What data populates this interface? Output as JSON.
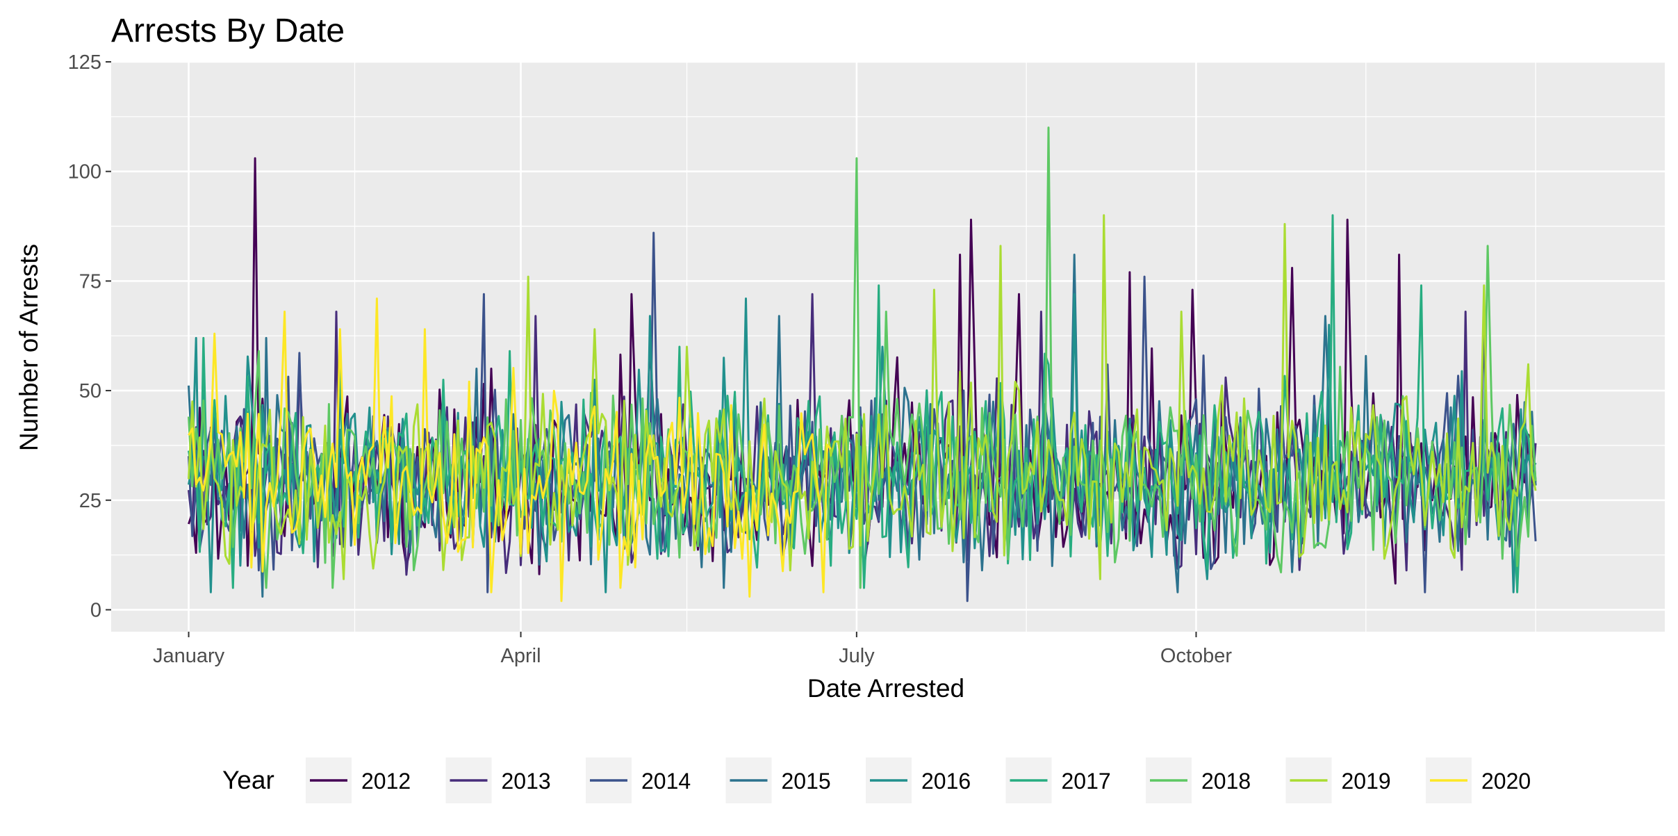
{
  "chart_data": {
    "type": "line",
    "title": "Arrests By Date",
    "xlabel": "Date Arrested",
    "ylabel": "Number of Arrests",
    "ylim": [
      -5,
      125
    ],
    "yticks": [
      0,
      25,
      50,
      75,
      100,
      125
    ],
    "xlim_day_of_year": [
      -20,
      401
    ],
    "xticks": [
      {
        "label": "January",
        "day": 1
      },
      {
        "label": "April",
        "day": 91
      },
      {
        "label": "July",
        "day": 182
      },
      {
        "label": "October",
        "day": 274
      }
    ],
    "x_minor_gridlines_day": [
      46,
      136,
      228,
      320,
      366
    ],
    "grid": true,
    "legend": {
      "title": "Year",
      "position": "bottom"
    },
    "series": [
      {
        "name": "2012",
        "color": "#440154",
        "peaks": [
          {
            "day": 19,
            "value": 103
          },
          {
            "day": 83,
            "value": 55
          },
          {
            "day": 121,
            "value": 72
          },
          {
            "day": 210,
            "value": 81
          },
          {
            "day": 213,
            "value": 89
          },
          {
            "day": 226,
            "value": 72
          },
          {
            "day": 256,
            "value": 77
          },
          {
            "day": 273,
            "value": 73
          },
          {
            "day": 300,
            "value": 78
          },
          {
            "day": 315,
            "value": 89
          },
          {
            "day": 329,
            "value": 81
          },
          {
            "day": 361,
            "value": 49
          }
        ],
        "lows": [
          {
            "day": 3,
            "value": 13
          },
          {
            "day": 60,
            "value": 10
          },
          {
            "day": 170,
            "value": 10
          },
          {
            "day": 280,
            "value": 12
          },
          {
            "day": 328,
            "value": 6
          }
        ]
      },
      {
        "name": "2013",
        "color": "#472d7b",
        "peaks": [
          {
            "day": 41,
            "value": 68
          },
          {
            "day": 95,
            "value": 67
          },
          {
            "day": 126,
            "value": 61
          },
          {
            "day": 170,
            "value": 72
          },
          {
            "day": 232,
            "value": 68
          },
          {
            "day": 282,
            "value": 53
          },
          {
            "day": 347,
            "value": 68
          }
        ],
        "lows": [
          {
            "day": 60,
            "value": 8
          },
          {
            "day": 180,
            "value": 13
          },
          {
            "day": 331,
            "value": 9
          }
        ]
      },
      {
        "name": "2014",
        "color": "#3b528b",
        "peaks": [
          {
            "day": 81,
            "value": 72
          },
          {
            "day": 127,
            "value": 86
          },
          {
            "day": 260,
            "value": 76
          },
          {
            "day": 276,
            "value": 58
          },
          {
            "day": 352,
            "value": 66
          }
        ],
        "lows": [
          {
            "day": 20,
            "value": 9
          },
          {
            "day": 82,
            "value": 4
          },
          {
            "day": 212,
            "value": 2
          },
          {
            "day": 336,
            "value": 4
          }
        ]
      },
      {
        "name": "2015",
        "color": "#2c728e",
        "peaks": [
          {
            "day": 22,
            "value": 62
          },
          {
            "day": 79,
            "value": 55
          },
          {
            "day": 161,
            "value": 67
          },
          {
            "day": 241,
            "value": 81
          },
          {
            "day": 309,
            "value": 67
          }
        ],
        "lows": [
          {
            "day": 21,
            "value": 3
          },
          {
            "day": 146,
            "value": 5
          },
          {
            "day": 269,
            "value": 4
          }
        ]
      },
      {
        "name": "2016",
        "color": "#21908d",
        "peaks": [
          {
            "day": 3,
            "value": 62
          },
          {
            "day": 126,
            "value": 67
          },
          {
            "day": 152,
            "value": 71
          },
          {
            "day": 241,
            "value": 72
          },
          {
            "day": 310,
            "value": 65
          }
        ],
        "lows": [
          {
            "day": 7,
            "value": 4
          },
          {
            "day": 114,
            "value": 4
          },
          {
            "day": 277,
            "value": 7
          },
          {
            "day": 360,
            "value": 4
          }
        ]
      },
      {
        "name": "2017",
        "color": "#27ad81",
        "peaks": [
          {
            "day": 5,
            "value": 62
          },
          {
            "day": 88,
            "value": 59
          },
          {
            "day": 188,
            "value": 74
          },
          {
            "day": 311,
            "value": 90
          },
          {
            "day": 335,
            "value": 74
          }
        ],
        "lows": [
          {
            "day": 13,
            "value": 5
          },
          {
            "day": 184,
            "value": 5
          },
          {
            "day": 361,
            "value": 4
          }
        ]
      },
      {
        "name": "2018",
        "color": "#5dc863",
        "peaks": [
          {
            "day": 20,
            "value": 59
          },
          {
            "day": 182,
            "value": 103
          },
          {
            "day": 190,
            "value": 68
          },
          {
            "day": 234,
            "value": 110
          },
          {
            "day": 353,
            "value": 83
          }
        ],
        "lows": [
          {
            "day": 22,
            "value": 5
          },
          {
            "day": 40,
            "value": 5
          },
          {
            "day": 183,
            "value": 5
          }
        ]
      },
      {
        "name": "2019",
        "color": "#aadc32",
        "peaks": [
          {
            "day": 93,
            "value": 76
          },
          {
            "day": 111,
            "value": 64
          },
          {
            "day": 203,
            "value": 73
          },
          {
            "day": 221,
            "value": 83
          },
          {
            "day": 249,
            "value": 90
          },
          {
            "day": 270,
            "value": 68
          },
          {
            "day": 298,
            "value": 88
          },
          {
            "day": 352,
            "value": 74
          },
          {
            "day": 364,
            "value": 56
          }
        ],
        "lows": [
          {
            "day": 43,
            "value": 7
          },
          {
            "day": 164,
            "value": 9
          },
          {
            "day": 248,
            "value": 7
          }
        ]
      },
      {
        "name": "2020",
        "color": "#fde725",
        "peaks": [
          {
            "day": 8,
            "value": 63
          },
          {
            "day": 27,
            "value": 68
          },
          {
            "day": 42,
            "value": 64
          },
          {
            "day": 52,
            "value": 71
          },
          {
            "day": 65,
            "value": 64
          }
        ],
        "lows": [
          {
            "day": 83,
            "value": 4
          },
          {
            "day": 102,
            "value": 2
          },
          {
            "day": 118,
            "value": 5
          },
          {
            "day": 153,
            "value": 3
          },
          {
            "day": 173,
            "value": 4
          }
        ],
        "end_day": 175
      }
    ]
  }
}
